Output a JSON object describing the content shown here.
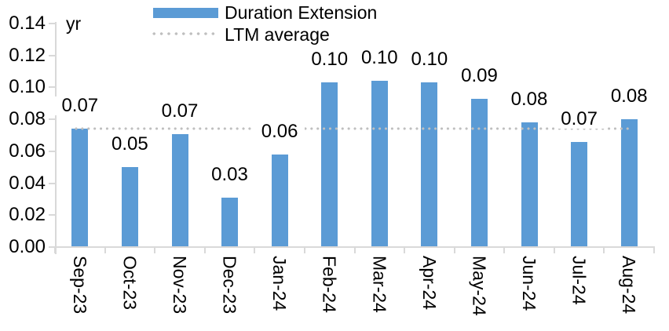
{
  "chart_data": {
    "type": "bar",
    "unit_label": "yr",
    "categories": [
      "Sep-23",
      "Oct-23",
      "Nov-23",
      "Dec-23",
      "Jan-24",
      "Feb-24",
      "Mar-24",
      "Apr-24",
      "May-24",
      "Jun-24",
      "Jul-24",
      "Aug-24"
    ],
    "series": [
      {
        "name": "Duration Extension",
        "values": [
          0.074,
          0.05,
          0.071,
          0.031,
          0.058,
          0.103,
          0.104,
          0.103,
          0.093,
          0.078,
          0.066,
          0.08
        ],
        "data_labels": [
          "0.07",
          "0.05",
          "0.07",
          "0.03",
          "0.06",
          "0.10",
          "0.10",
          "0.10",
          "0.09",
          "0.08",
          "0.07",
          "0.08"
        ]
      }
    ],
    "average_line": {
      "name": "LTM average",
      "value": 0.074,
      "style": "dotted"
    },
    "y_axis": {
      "min": 0,
      "max": 0.14,
      "tick_step": 0.02,
      "tick_labels": [
        "0.00",
        "0.02",
        "0.04",
        "0.06",
        "0.08",
        "0.10",
        "0.12",
        "0.14"
      ]
    },
    "legend": {
      "position": "top",
      "entries": [
        "Duration Extension",
        "LTM average"
      ]
    },
    "grid": false
  },
  "colors": {
    "bar": "#5B9BD5",
    "average_line": "#BFBFBF",
    "axis_line": "#D9D9D9",
    "text": "#000000",
    "background": "#FFFFFF"
  }
}
